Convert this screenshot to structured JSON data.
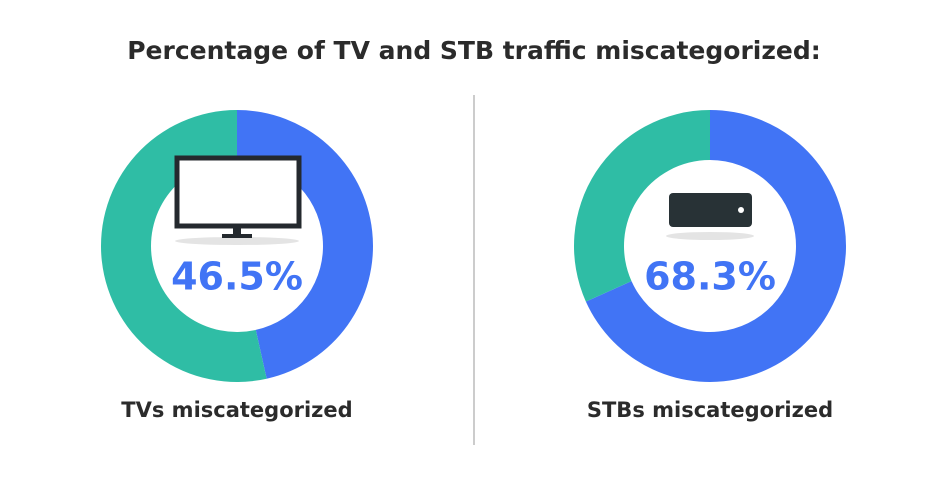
{
  "title": "Percentage of TV and STB traffic miscategorized:",
  "chart_data": [
    {
      "type": "donut",
      "caption": "TVs miscategorized",
      "values": [
        46.5,
        53.5
      ],
      "value_labels": [
        "46.5%",
        null
      ],
      "colors": [
        "#4174f5",
        "#2fbda5"
      ]
    },
    {
      "type": "donut",
      "caption": "STBs miscategorized",
      "values": [
        68.3,
        31.7
      ],
      "value_labels": [
        "68.3%",
        null
      ],
      "colors": [
        "#4174f5",
        "#2fbda5"
      ]
    }
  ]
}
